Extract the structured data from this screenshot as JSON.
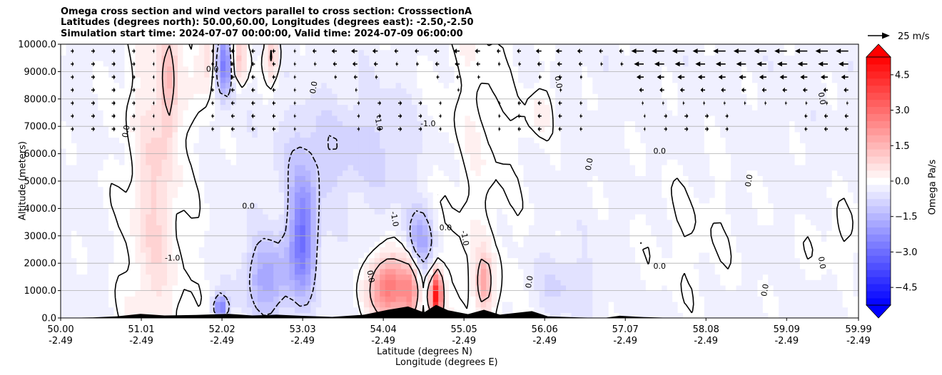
{
  "chart_data": {
    "type": "contour-filled cross section with wind vectors",
    "title_lines": [
      "Omega cross section and wind vectors parallel to cross section: CrosssectionA",
      "Latitudes (degrees north): 50.00,60.00, Longitudes (degrees east): -2.50,-2.50",
      "Simulation start time: 2024-07-07 00:00:00, Valid time: 2024-07-09 06:00:00"
    ],
    "ylabel": "Altitude (meters)",
    "xlabel_lines": [
      "Latitude (degrees N)",
      "Longitude (degrees E)"
    ],
    "ylim": [
      0,
      10000
    ],
    "xlim": [
      50.0,
      59.99
    ],
    "y_ticks": [
      {
        "value": 0,
        "label": "0.0"
      },
      {
        "value": 1000,
        "label": "1000.0"
      },
      {
        "value": 2000,
        "label": "2000.0"
      },
      {
        "value": 3000,
        "label": "3000.0"
      },
      {
        "value": 4000,
        "label": "4000.0"
      },
      {
        "value": 5000,
        "label": "5000.0"
      },
      {
        "value": 6000,
        "label": "6000.0"
      },
      {
        "value": 7000,
        "label": "7000.0"
      },
      {
        "value": 8000,
        "label": "8000.0"
      },
      {
        "value": 9000,
        "label": "9000.0"
      },
      {
        "value": 10000,
        "label": "10000.0"
      }
    ],
    "x_ticks": [
      {
        "lat": 50.0,
        "lat_label": "50.00",
        "lon_label": "-2.49"
      },
      {
        "lat": 51.01,
        "lat_label": "51.01",
        "lon_label": "-2.49"
      },
      {
        "lat": 52.02,
        "lat_label": "52.02",
        "lon_label": "-2.49"
      },
      {
        "lat": 53.03,
        "lat_label": "53.03",
        "lon_label": "-2.49"
      },
      {
        "lat": 54.04,
        "lat_label": "54.04",
        "lon_label": "-2.49"
      },
      {
        "lat": 55.05,
        "lat_label": "55.05",
        "lon_label": "-2.49"
      },
      {
        "lat": 56.06,
        "lat_label": "56.06",
        "lon_label": "-2.49"
      },
      {
        "lat": 57.07,
        "lat_label": "57.07",
        "lon_label": "-2.49"
      },
      {
        "lat": 58.08,
        "lat_label": "58.08",
        "lon_label": "-2.49"
      },
      {
        "lat": 59.09,
        "lat_label": "59.09",
        "lon_label": "-2.49"
      },
      {
        "lat": 59.99,
        "lat_label": "59.99",
        "lon_label": "-2.49"
      }
    ],
    "grid": "horizontal",
    "colorbar": {
      "label": "Omega Pa/s",
      "range": [
        -5.25,
        5.25
      ],
      "levels": [
        -5.25,
        -4.95,
        -4.65,
        -4.35,
        -4.05,
        -3.75,
        -3.45,
        -3.15,
        -2.85,
        -2.55,
        -2.25,
        -1.95,
        -1.65,
        -1.35,
        -1.05,
        -0.75,
        -0.45,
        -0.15,
        0.15,
        0.45,
        0.75,
        1.05,
        1.35,
        1.65,
        1.95,
        2.25,
        2.55,
        2.85,
        3.15,
        3.45,
        3.75,
        4.05,
        4.35,
        4.65,
        4.95,
        5.25
      ],
      "ticks": [
        {
          "value": -4.5,
          "label": "−4.5"
        },
        {
          "value": -3.0,
          "label": "−3.0"
        },
        {
          "value": -1.5,
          "label": "−1.5"
        },
        {
          "value": 0.0,
          "label": "0.0"
        },
        {
          "value": 1.5,
          "label": "1.5"
        },
        {
          "value": 3.0,
          "label": "3.0"
        },
        {
          "value": 4.5,
          "label": "4.5"
        }
      ],
      "extend": "both",
      "low_color": "#0000ff",
      "mid_color": "#ffffff",
      "high_color": "#ff0000"
    },
    "quiver_key": {
      "label": "25 m/s",
      "speed": 25
    },
    "contour_labels": [
      {
        "lat": 54.82,
        "alt": 3200,
        "label": "0.0"
      },
      {
        "lat": 55.03,
        "alt": 2900,
        "label": "-1.0"
      },
      {
        "lat": 50.85,
        "alt": 6800,
        "label": "0.0"
      },
      {
        "lat": 51.9,
        "alt": 9000,
        "label": "0.0"
      },
      {
        "lat": 53.2,
        "alt": 8400,
        "label": "0.0"
      },
      {
        "lat": 53.95,
        "alt": 7100,
        "label": "-1.0"
      },
      {
        "lat": 54.6,
        "alt": 7000,
        "label": "-1.0"
      },
      {
        "lat": 56.2,
        "alt": 8600,
        "label": "0.0"
      },
      {
        "lat": 56.65,
        "alt": 5600,
        "label": "0.0"
      },
      {
        "lat": 57.5,
        "alt": 6000,
        "label": "0.0"
      },
      {
        "lat": 58.65,
        "alt": 5000,
        "label": "0.0"
      },
      {
        "lat": 59.5,
        "alt": 8000,
        "label": "0.0"
      },
      {
        "lat": 52.35,
        "alt": 4000,
        "label": "0.0"
      },
      {
        "lat": 53.85,
        "alt": 1500,
        "label": "0.0"
      },
      {
        "lat": 55.9,
        "alt": 1300,
        "label": "0.0"
      },
      {
        "lat": 57.5,
        "alt": 1800,
        "label": "0.0"
      },
      {
        "lat": 58.85,
        "alt": 1000,
        "label": "0.0"
      },
      {
        "lat": 59.5,
        "alt": 2000,
        "label": "0.0"
      },
      {
        "lat": 51.4,
        "alt": 2100,
        "label": "-1.0"
      },
      {
        "lat": 54.15,
        "alt": 3600,
        "label": "-1.0"
      }
    ],
    "field_features": [
      {
        "lat": 51.35,
        "alt": 8600,
        "sigma_lat": 0.08,
        "sigma_alt": 1700,
        "omega": 1.2
      },
      {
        "lat": 51.85,
        "alt": 9300,
        "sigma_lat": 0.12,
        "sigma_alt": 900,
        "omega": 1.0
      },
      {
        "lat": 52.05,
        "alt": 9300,
        "sigma_lat": 0.08,
        "sigma_alt": 800,
        "omega": -3.0
      },
      {
        "lat": 52.22,
        "alt": 9500,
        "sigma_lat": 0.08,
        "sigma_alt": 700,
        "omega": 1.6
      },
      {
        "lat": 52.65,
        "alt": 9600,
        "sigma_lat": 0.06,
        "sigma_alt": 600,
        "omega": 1.5
      },
      {
        "lat": 53.03,
        "alt": 3000,
        "sigma_lat": 0.12,
        "sigma_alt": 1500,
        "omega": -2.6
      },
      {
        "lat": 52.6,
        "alt": 1500,
        "sigma_lat": 0.2,
        "sigma_alt": 1000,
        "omega": -1.6
      },
      {
        "lat": 52.0,
        "alt": 400,
        "sigma_lat": 0.06,
        "sigma_alt": 300,
        "omega": -2.5
      },
      {
        "lat": 53.2,
        "alt": 6000,
        "sigma_lat": 0.35,
        "sigma_alt": 1200,
        "omega": -0.6
      },
      {
        "lat": 54.0,
        "alt": 6200,
        "sigma_lat": 0.4,
        "sigma_alt": 1500,
        "omega": -0.5
      },
      {
        "lat": 54.1,
        "alt": 1100,
        "sigma_lat": 0.16,
        "sigma_alt": 800,
        "omega": 3.2
      },
      {
        "lat": 54.38,
        "alt": 1000,
        "sigma_lat": 0.08,
        "sigma_alt": 900,
        "omega": 2.0
      },
      {
        "lat": 54.7,
        "alt": 800,
        "sigma_lat": 0.05,
        "sigma_alt": 600,
        "omega": 5.0
      },
      {
        "lat": 55.3,
        "alt": 1300,
        "sigma_lat": 0.07,
        "sigma_alt": 700,
        "omega": 1.8
      },
      {
        "lat": 54.5,
        "alt": 2800,
        "sigma_lat": 0.12,
        "sigma_alt": 800,
        "omega": -1.6
      },
      {
        "lat": 51.15,
        "alt": 4000,
        "sigma_lat": 0.15,
        "sigma_alt": 3000,
        "omega": 0.6
      },
      {
        "lat": 56.0,
        "alt": 7600,
        "sigma_lat": 0.12,
        "sigma_alt": 700,
        "omega": 0.5
      },
      {
        "lat": 57.9,
        "alt": 3000,
        "sigma_lat": 0.5,
        "sigma_alt": 2200,
        "omega": 0.25
      },
      {
        "lat": 59.7,
        "alt": 3000,
        "sigma_lat": 0.3,
        "sigma_alt": 1000,
        "omega": 0.3
      },
      {
        "lat": 56.3,
        "alt": 1200,
        "sigma_lat": 0.3,
        "sigma_alt": 800,
        "omega": -0.5
      }
    ],
    "terrain": [
      {
        "lat": 50.0,
        "alt": 0
      },
      {
        "lat": 50.4,
        "alt": 20
      },
      {
        "lat": 50.7,
        "alt": 60
      },
      {
        "lat": 51.0,
        "alt": 150
      },
      {
        "lat": 51.3,
        "alt": 90
      },
      {
        "lat": 51.7,
        "alt": 110
      },
      {
        "lat": 52.1,
        "alt": 150
      },
      {
        "lat": 52.4,
        "alt": 90
      },
      {
        "lat": 52.7,
        "alt": 120
      },
      {
        "lat": 53.0,
        "alt": 80
      },
      {
        "lat": 53.4,
        "alt": 40
      },
      {
        "lat": 53.8,
        "alt": 120
      },
      {
        "lat": 54.1,
        "alt": 300
      },
      {
        "lat": 54.35,
        "alt": 420
      },
      {
        "lat": 54.55,
        "alt": 200
      },
      {
        "lat": 54.7,
        "alt": 480
      },
      {
        "lat": 54.85,
        "alt": 280
      },
      {
        "lat": 55.1,
        "alt": 140
      },
      {
        "lat": 55.3,
        "alt": 300
      },
      {
        "lat": 55.5,
        "alt": 120
      },
      {
        "lat": 55.9,
        "alt": 250
      },
      {
        "lat": 56.1,
        "alt": 60
      },
      {
        "lat": 56.5,
        "alt": 20
      },
      {
        "lat": 56.8,
        "alt": 0
      },
      {
        "lat": 57.0,
        "alt": 80
      },
      {
        "lat": 57.3,
        "alt": 30
      },
      {
        "lat": 57.7,
        "alt": 0
      },
      {
        "lat": 59.99,
        "alt": 0
      }
    ]
  }
}
